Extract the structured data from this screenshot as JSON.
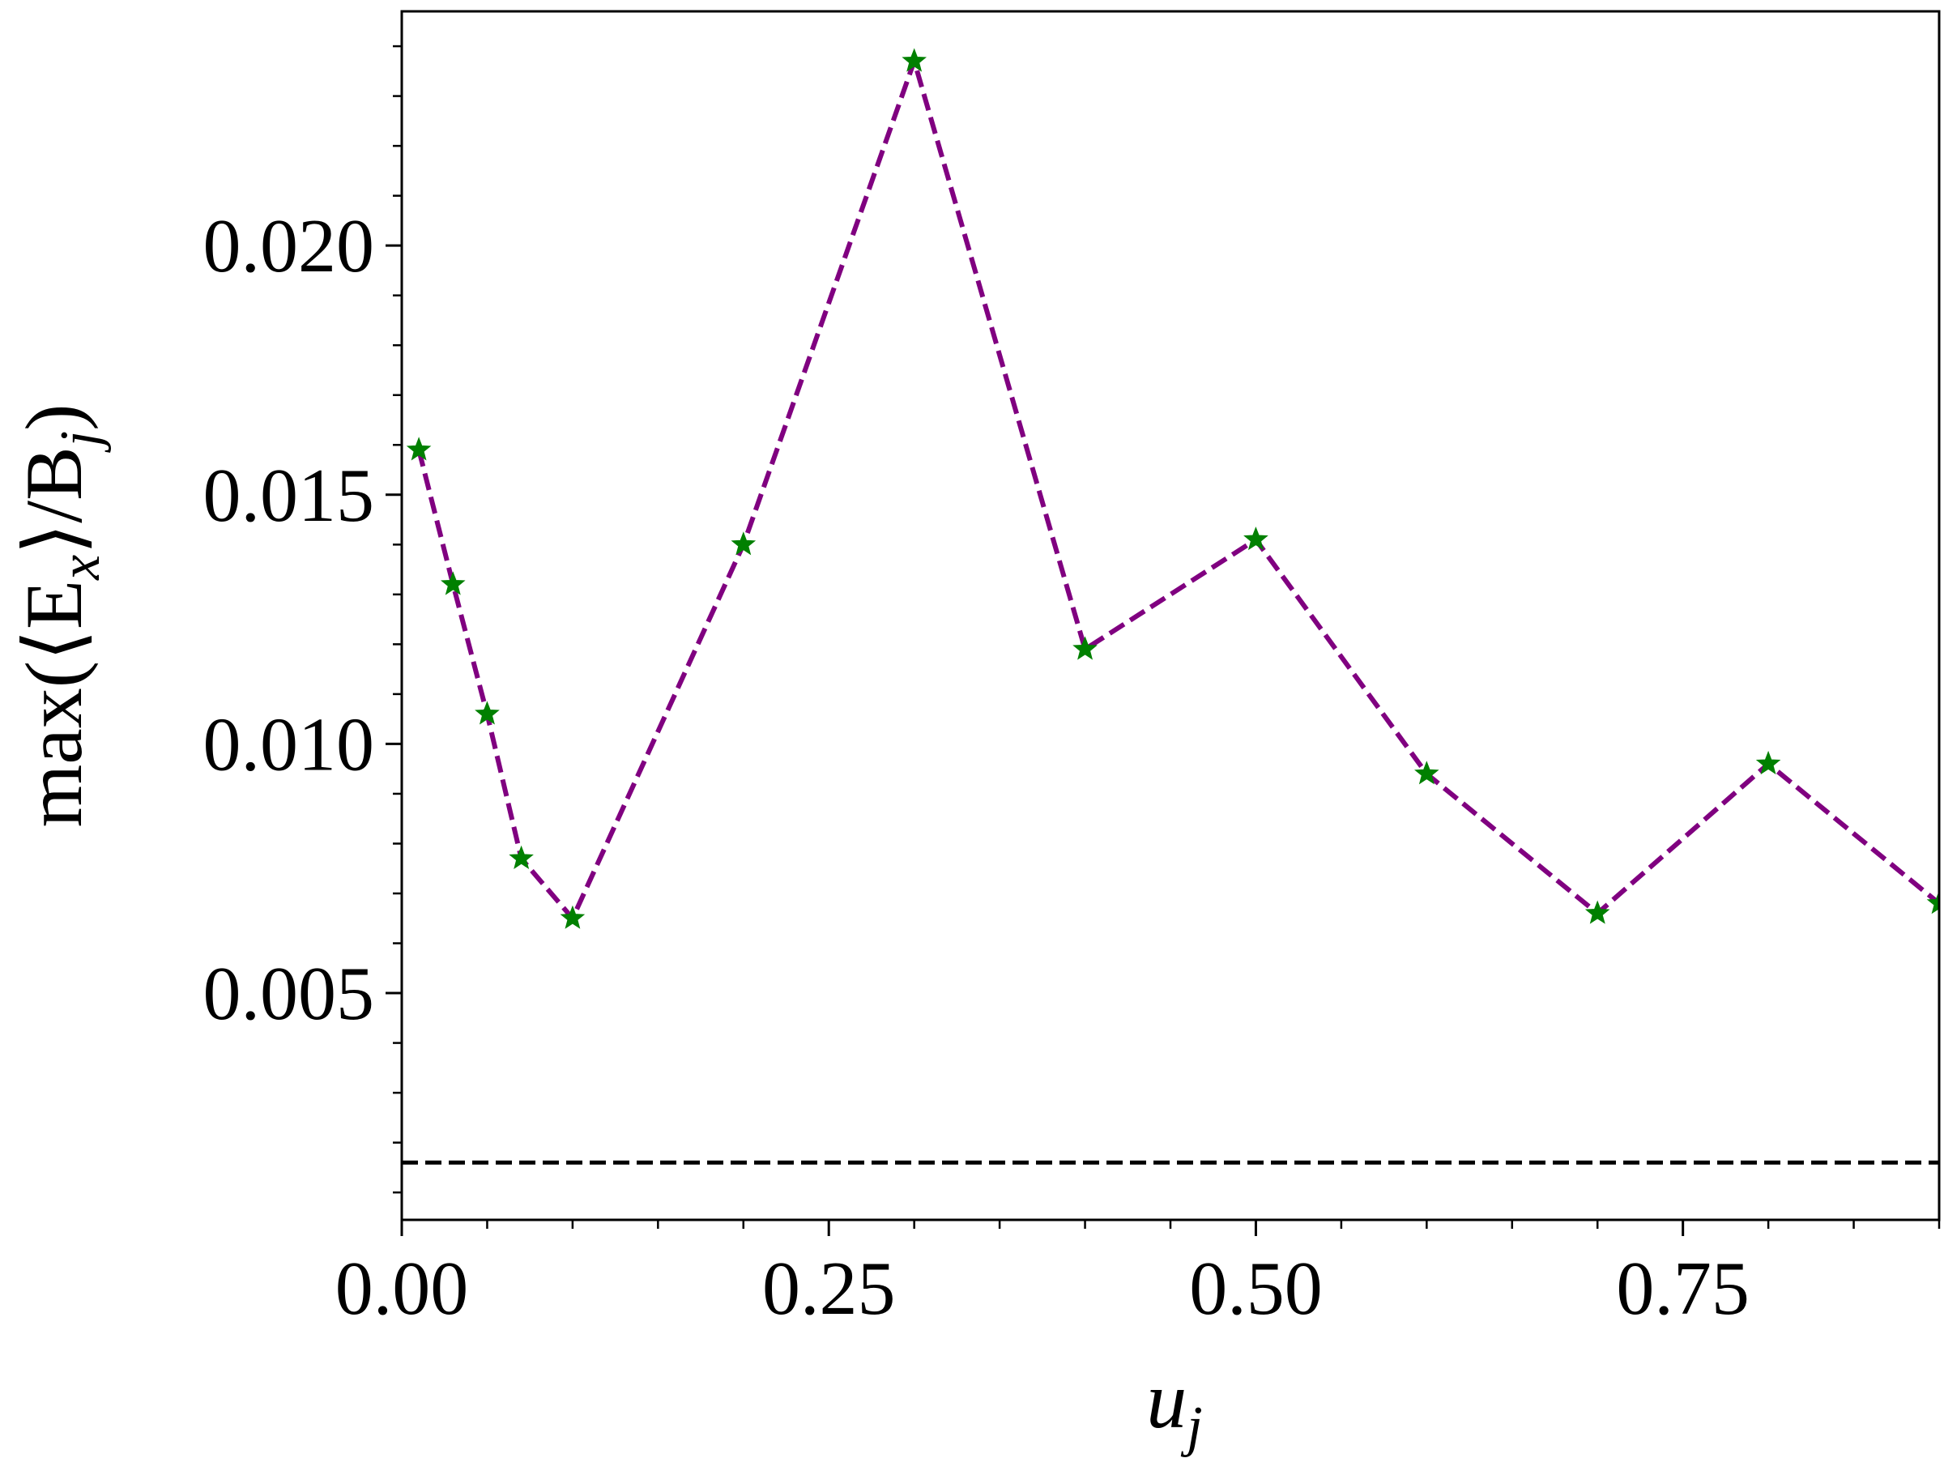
{
  "chart_data": {
    "type": "line",
    "title": "",
    "xlabel": "u",
    "xlabel_sub": "j",
    "ylabel": "max(⟨E",
    "ylabel_sub1": "x",
    "ylabel_mid": "⟩/B",
    "ylabel_sub2": "j",
    "ylabel_end": ")",
    "xlim": [
      0.0,
      0.9
    ],
    "ylim": [
      0.00045,
      0.0247
    ],
    "x_ticks": [
      0.0,
      0.25,
      0.5,
      0.75
    ],
    "x_tick_labels": [
      "0.00",
      "0.25",
      "0.50",
      "0.75"
    ],
    "y_ticks": [
      0.005,
      0.01,
      0.015,
      0.02
    ],
    "y_tick_labels": [
      "0.005",
      "0.010",
      "0.015",
      "0.020"
    ],
    "grid": false,
    "series": [
      {
        "style": "dashed line with star markers",
        "line_color": "#800080",
        "marker_color": "#008000",
        "x": [
          0.01,
          0.03,
          0.05,
          0.07,
          0.1,
          0.2,
          0.3,
          0.4,
          0.5,
          0.6,
          0.7,
          0.8,
          0.9
        ],
        "y": [
          0.0159,
          0.0132,
          0.0106,
          0.0077,
          0.0065,
          0.014,
          0.0237,
          0.0119,
          0.0141,
          0.0094,
          0.0066,
          0.0096,
          0.0068
        ]
      },
      {
        "style": "dashed horizontal reference line",
        "line_color": "#000000",
        "x": [
          0.0,
          0.9
        ],
        "y": [
          0.0016,
          0.0016
        ]
      }
    ]
  }
}
